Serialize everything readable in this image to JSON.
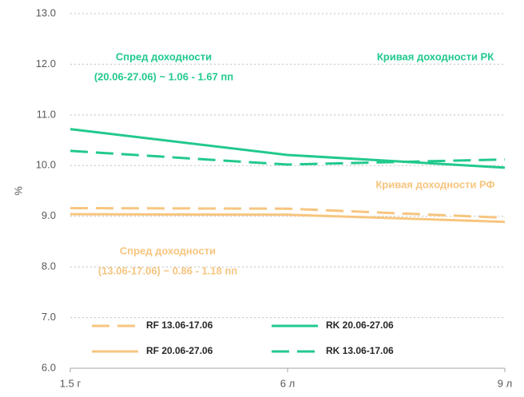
{
  "chart_data": {
    "type": "line",
    "y_label": "%",
    "categories": [
      "1.5 г",
      "6 л",
      "9 л"
    ],
    "ylim": [
      6,
      13
    ],
    "yticks": [
      {
        "value": 6,
        "label": "6.0"
      },
      {
        "value": 7,
        "label": "7.0"
      },
      {
        "value": 8,
        "label": "8.0"
      },
      {
        "value": 9,
        "label": "9.0"
      },
      {
        "value": 10,
        "label": "10.0"
      },
      {
        "value": 11,
        "label": "11.0"
      },
      {
        "value": 12,
        "label": "12.0"
      },
      {
        "value": 13,
        "label": "13.0"
      }
    ],
    "grid": true,
    "series": [
      {
        "name": "RF 13.06-17.06",
        "color": "#f7c57f",
        "dash": true,
        "values": [
          9.16,
          9.15,
          8.97
        ]
      },
      {
        "name": "RK 20.06-27.06",
        "color": "#22c98d",
        "dash": false,
        "values": [
          10.72,
          10.21,
          9.96
        ]
      },
      {
        "name": "RF 20.06-27.06",
        "color": "#f7c57f",
        "dash": false,
        "values": [
          9.04,
          9.03,
          8.89
        ]
      },
      {
        "name": "RK 13.06-17.06",
        "color": "#22c98d",
        "dash": true,
        "values": [
          10.29,
          10.02,
          10.12
        ]
      }
    ],
    "annotations": [
      {
        "lines": [
          "Спред доходности",
          "(20.06-27.06) ~ 1.06 - 1.67 пп"
        ],
        "color": "#22c98d"
      },
      {
        "lines": [
          "Кривая доходности РК"
        ],
        "color": "#22c98d"
      },
      {
        "lines": [
          "Кривая доходности РФ"
        ],
        "color": "#f7c57f"
      },
      {
        "lines": [
          "Спред доходности",
          "(13.06-17.06) ~ 0.86 - 1.18 пп"
        ],
        "color": "#f7c57f"
      }
    ]
  }
}
